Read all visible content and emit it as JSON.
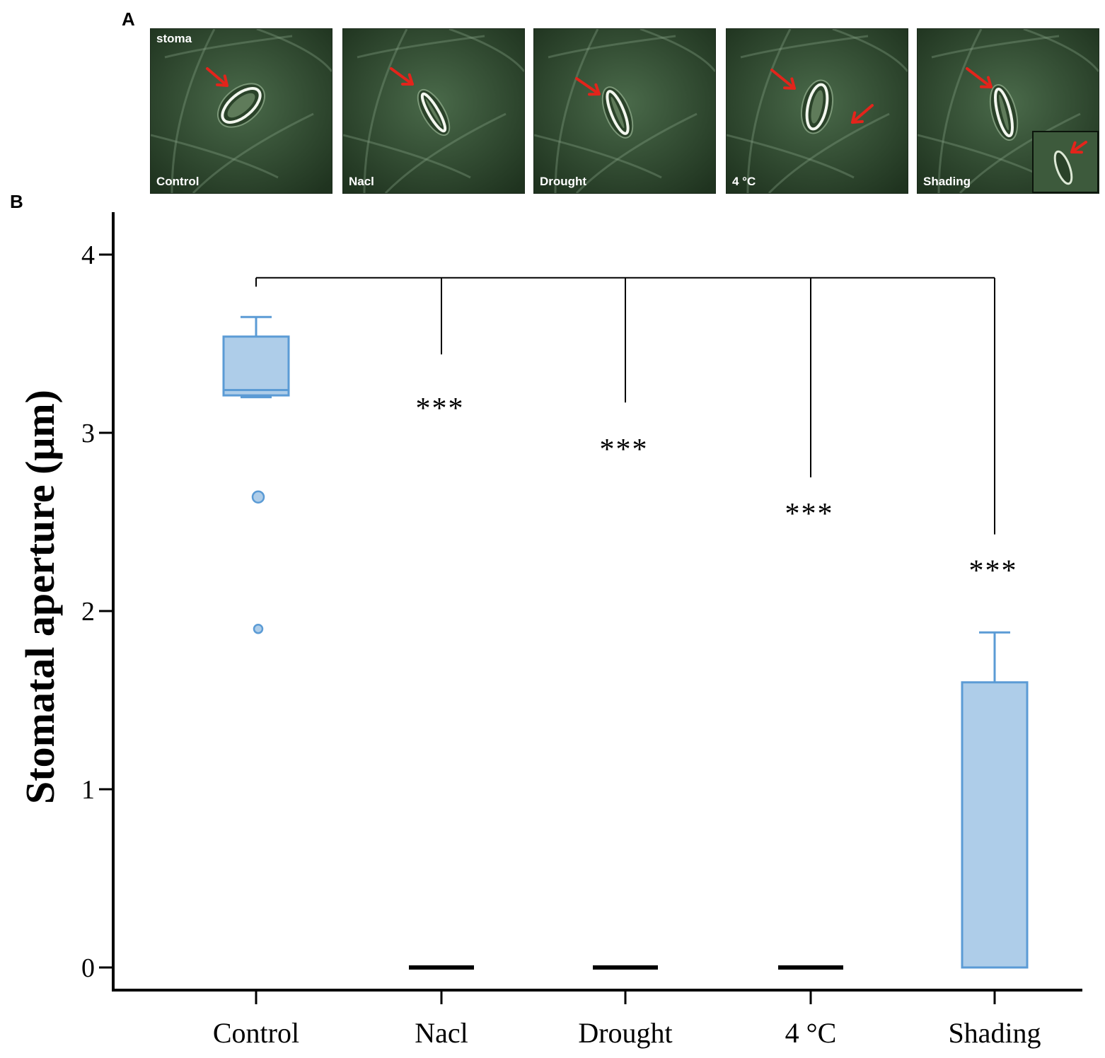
{
  "figure": {
    "panel_a_letter": "A",
    "panel_b_letter": "B",
    "stoma_label": "stoma",
    "micrographs": [
      {
        "label": "Control"
      },
      {
        "label": "Nacl"
      },
      {
        "label": "Drought"
      },
      {
        "label": "4 °C"
      },
      {
        "label": "Shading"
      }
    ]
  },
  "chart_data": {
    "type": "box",
    "title": "",
    "xlabel": "",
    "ylabel": "Stomatal aperture (μm)",
    "ylim": [
      -0.2,
      4.25
    ],
    "yticks": [
      0,
      1,
      2,
      3,
      4
    ],
    "categories": [
      "Control",
      "Nacl",
      "Drought",
      "4 °C",
      "Shading"
    ],
    "boxes": [
      {
        "category": "Control",
        "q1": 3.21,
        "median": 3.24,
        "q3": 3.54,
        "whisker_low": 3.2,
        "whisker_high": 3.65,
        "outliers": [
          2.64,
          1.9
        ]
      },
      {
        "category": "Nacl",
        "q1": 0,
        "median": 0,
        "q3": 0,
        "whisker_low": 0,
        "whisker_high": 0,
        "outliers": []
      },
      {
        "category": "Drought",
        "q1": 0,
        "median": 0,
        "q3": 0,
        "whisker_low": 0,
        "whisker_high": 0,
        "outliers": []
      },
      {
        "category": "4 °C",
        "q1": 0,
        "median": 0,
        "q3": 0,
        "whisker_low": 0,
        "whisker_high": 0,
        "outliers": []
      },
      {
        "category": "Shading",
        "q1": 0,
        "median": 0,
        "q3": 1.6,
        "whisker_low": 0,
        "whisker_high": 1.88,
        "outliers": []
      }
    ],
    "significance": {
      "bracket_y": 3.87,
      "reference": "Control",
      "control_drop_y": 3.82,
      "comparisons": [
        {
          "category": "Nacl",
          "label": "***",
          "line_end_y": 3.44,
          "label_y": 3.17
        },
        {
          "category": "Drought",
          "label": "***",
          "line_end_y": 3.17,
          "label_y": 2.94
        },
        {
          "category": "4 °C",
          "label": "***",
          "line_end_y": 2.75,
          "label_y": 2.58
        },
        {
          "category": "Shading",
          "label": "***",
          "line_end_y": 2.43,
          "label_y": 2.26
        }
      ]
    },
    "colors": {
      "box_fill": "#aecde9",
      "box_stroke": "#5b9bd5",
      "axis": "#000000",
      "zero_line": "#000000"
    },
    "grid": false,
    "legend": "none"
  }
}
